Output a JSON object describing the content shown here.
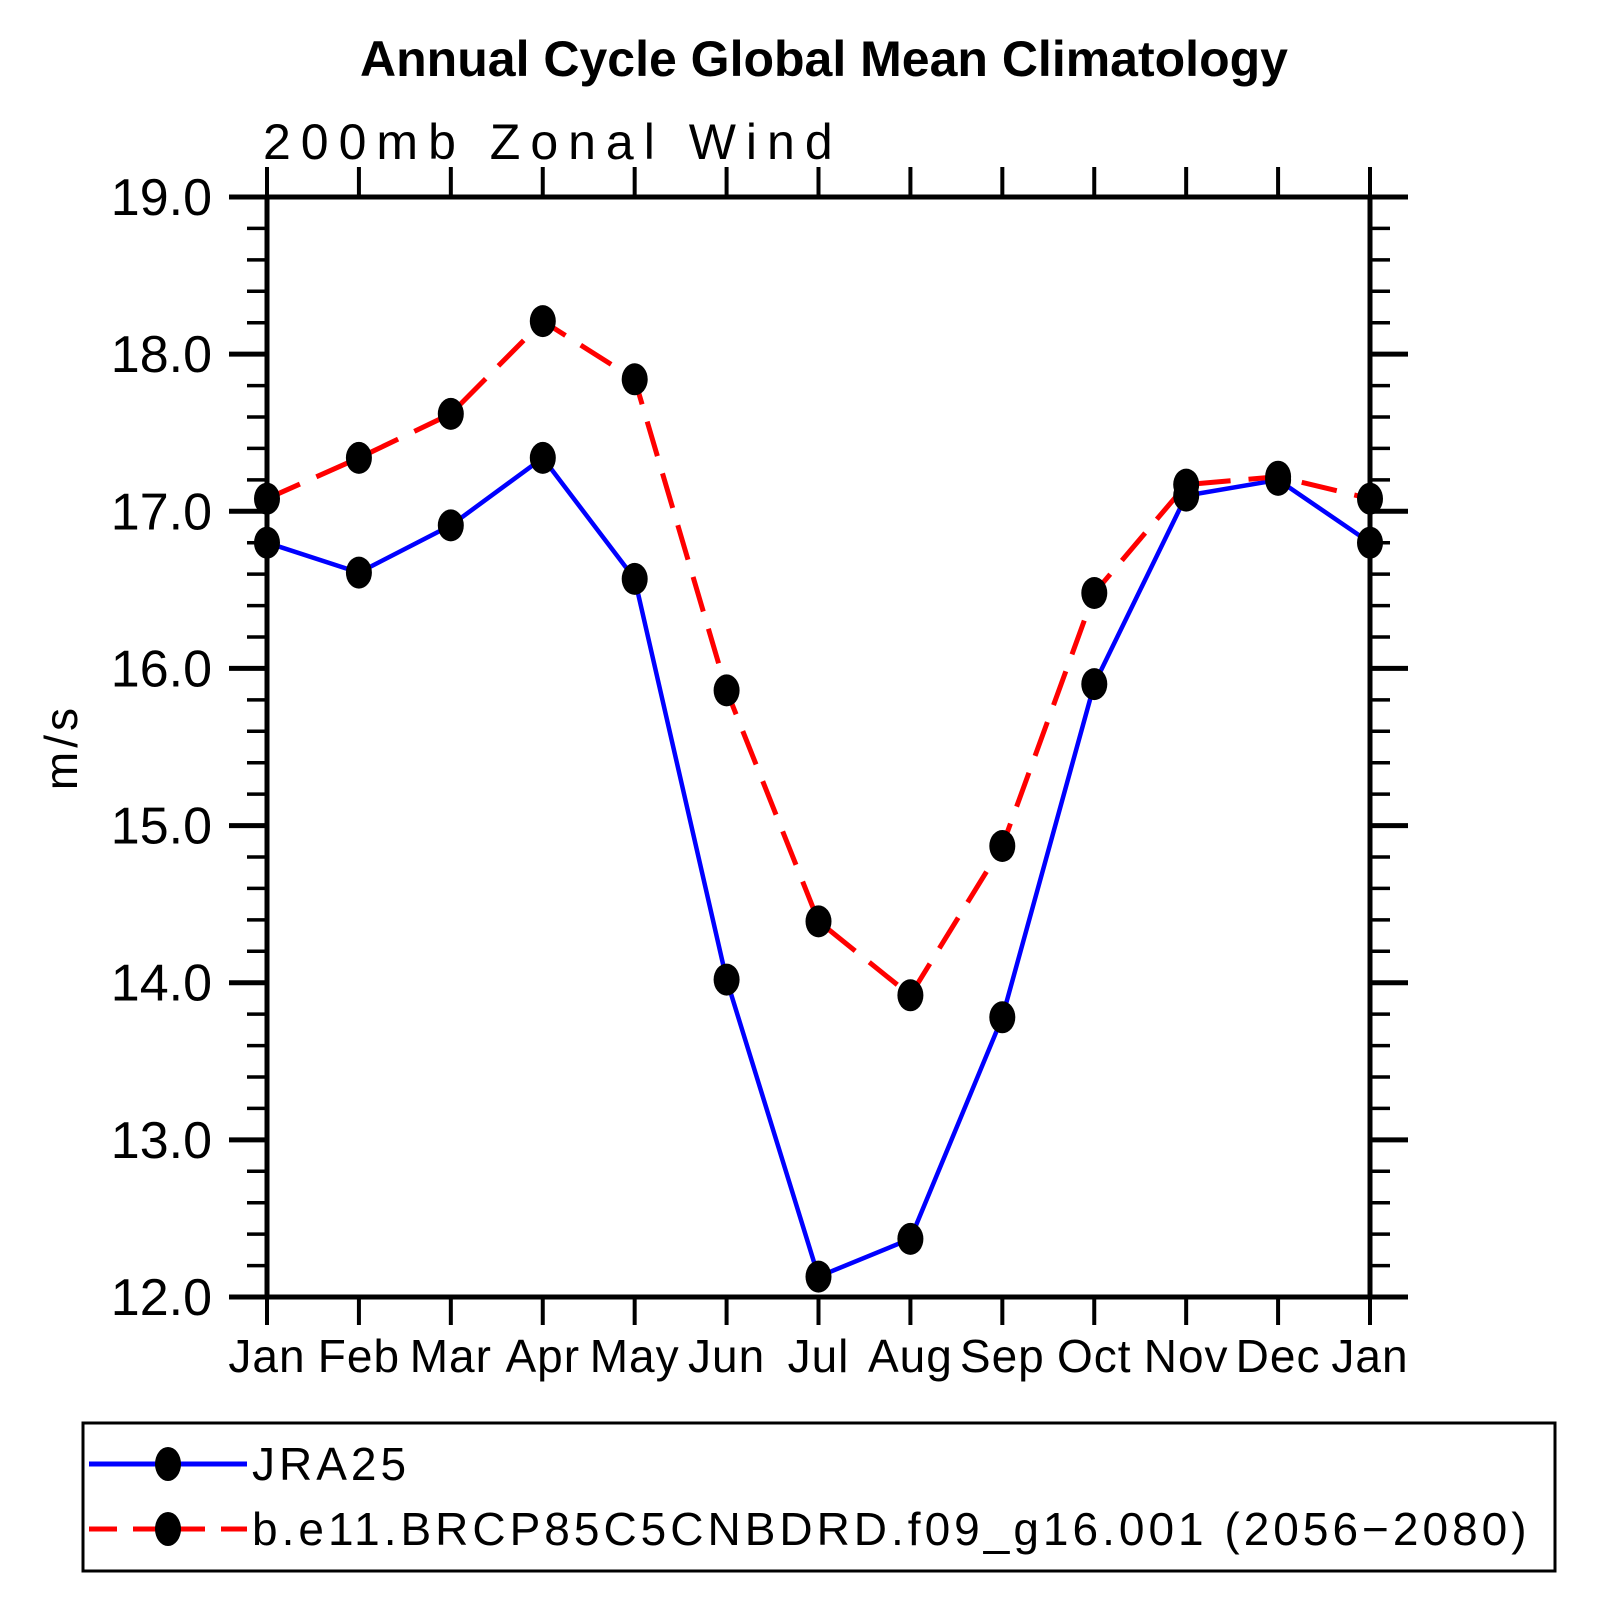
{
  "chart_data": {
    "type": "line",
    "title": "Annual Cycle Global Mean Climatology",
    "subtitle": "200mb Zonal Wind",
    "ylabel": "m/s",
    "categories": [
      "Jan",
      "Feb",
      "Mar",
      "Apr",
      "May",
      "Jun",
      "Jul",
      "Aug",
      "Sep",
      "Oct",
      "Nov",
      "Dec",
      "Jan"
    ],
    "series": [
      {
        "name": "JRA25",
        "color": "#0000ff",
        "line_style": "solid",
        "marker_color": "#000000",
        "values": [
          16.8,
          16.61,
          16.91,
          17.34,
          16.57,
          14.02,
          12.13,
          12.37,
          13.78,
          15.9,
          17.1,
          17.2,
          16.8
        ]
      },
      {
        "name": "b.e11.BRCP85C5CNBDRD.f09_g16.001 (2056−2080)",
        "color": "#ff0000",
        "line_style": "dashed",
        "marker_color": "#000000",
        "values": [
          17.08,
          17.34,
          17.62,
          18.21,
          17.84,
          15.86,
          14.39,
          13.92,
          14.87,
          16.48,
          17.17,
          17.22,
          17.08
        ]
      }
    ],
    "ylim": [
      12.0,
      19.0
    ],
    "ytick_step": 1.0,
    "yminor_step": 0.2,
    "ytick_format_decimals": 1,
    "grid": false,
    "legend_position": "bottom-left"
  }
}
